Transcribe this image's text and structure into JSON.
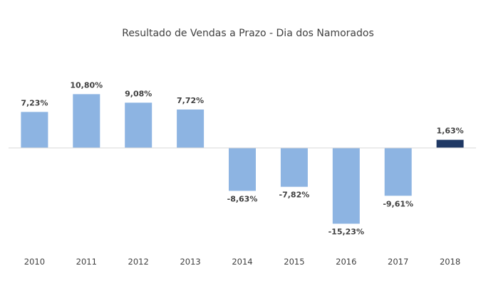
{
  "chart_data": {
    "type": "bar",
    "title": "Resultado de Vendas a Prazo - Dia dos Namorados",
    "xlabel": "",
    "ylabel": "",
    "ylim": [
      -17,
      12
    ],
    "grid": false,
    "categories": [
      "2010",
      "2011",
      "2012",
      "2013",
      "2014",
      "2015",
      "2016",
      "2017",
      "2018"
    ],
    "values": [
      7.23,
      10.8,
      9.08,
      7.72,
      -8.63,
      -7.82,
      -15.23,
      -9.61,
      1.63
    ],
    "value_labels": [
      "7,23%",
      "10,80%",
      "9,08%",
      "7,72%",
      "-8,63%",
      "-7,82%",
      "-15,23%",
      "-9,61%",
      "1,63%"
    ],
    "colors": {
      "default": "#8DB4E2",
      "highlight": "#1F3864",
      "highlight_category": "2018",
      "zero_line": "#D9D9D9"
    }
  }
}
